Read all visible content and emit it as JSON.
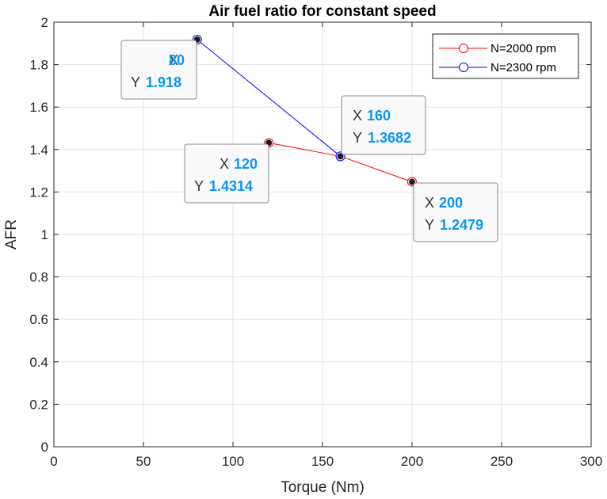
{
  "chart_data": {
    "type": "line",
    "title": "Air fuel ratio for constant speed",
    "xlabel": "Torque (Nm)",
    "ylabel": "AFR",
    "xlim": [
      0,
      300
    ],
    "ylim": [
      0,
      2
    ],
    "xticks": [
      "0",
      "50",
      "100",
      "150",
      "200",
      "250",
      "300"
    ],
    "yticks": [
      "0",
      "0.2",
      "0.4",
      "0.6",
      "0.8",
      "1",
      "1.2",
      "1.4",
      "1.6",
      "1.8",
      "2"
    ],
    "grid": true,
    "legend_position": "top-right",
    "series": [
      {
        "name": "N=2000 rpm",
        "color": "#ff0000",
        "x": [
          120,
          160,
          200
        ],
        "y": [
          1.4314,
          1.3682,
          1.2479
        ]
      },
      {
        "name": "N=2300 rpm",
        "color": "#0000ff",
        "x": [
          80,
          160
        ],
        "y": [
          1.918,
          1.3682
        ]
      }
    ],
    "datatips": [
      {
        "x_key": "X",
        "x_value": "80",
        "y_key": "Y",
        "y_value": "1.918"
      },
      {
        "x_key": "X",
        "x_value": "160",
        "y_key": "Y",
        "y_value": "1.3682"
      },
      {
        "x_key": "X",
        "x_value": "120",
        "y_key": "Y",
        "y_value": "1.4314"
      },
      {
        "x_key": "X",
        "x_value": "200",
        "y_key": "Y",
        "y_value": "1.2479"
      }
    ]
  }
}
